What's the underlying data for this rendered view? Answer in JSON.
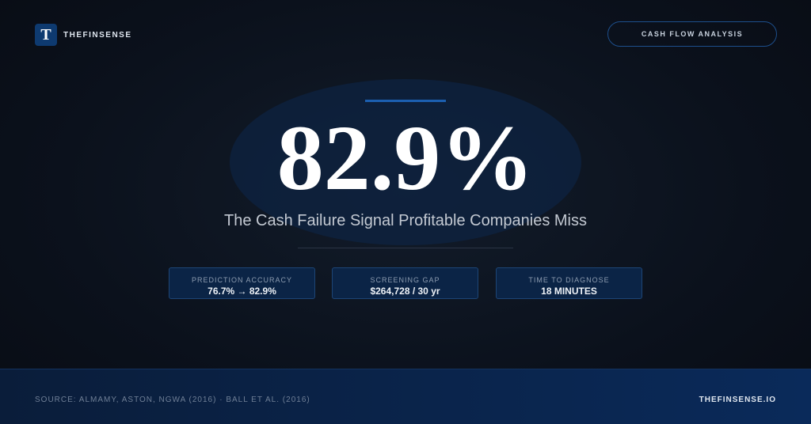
{
  "brand": {
    "logo": "T",
    "name": "THEFINSENSE"
  },
  "badge": "CASH FLOW ANALYSIS",
  "hero": {
    "stat": "82.9%",
    "subtitle": "The Cash Failure Signal Profitable Companies Miss"
  },
  "metrics": [
    {
      "label": "PREDICTION ACCURACY",
      "value": "76.7% → 82.9%"
    },
    {
      "label": "SCREENING GAP",
      "value": "$264,728 / 30 yr"
    },
    {
      "label": "TIME TO DIAGNOSE",
      "value": "18 MINUTES"
    }
  ],
  "footer": {
    "source": "SOURCE: ALMAMY, ASTON, NGWA (2016) · BALL ET AL. (2016)",
    "site": "THEFINSENSE.IO"
  }
}
